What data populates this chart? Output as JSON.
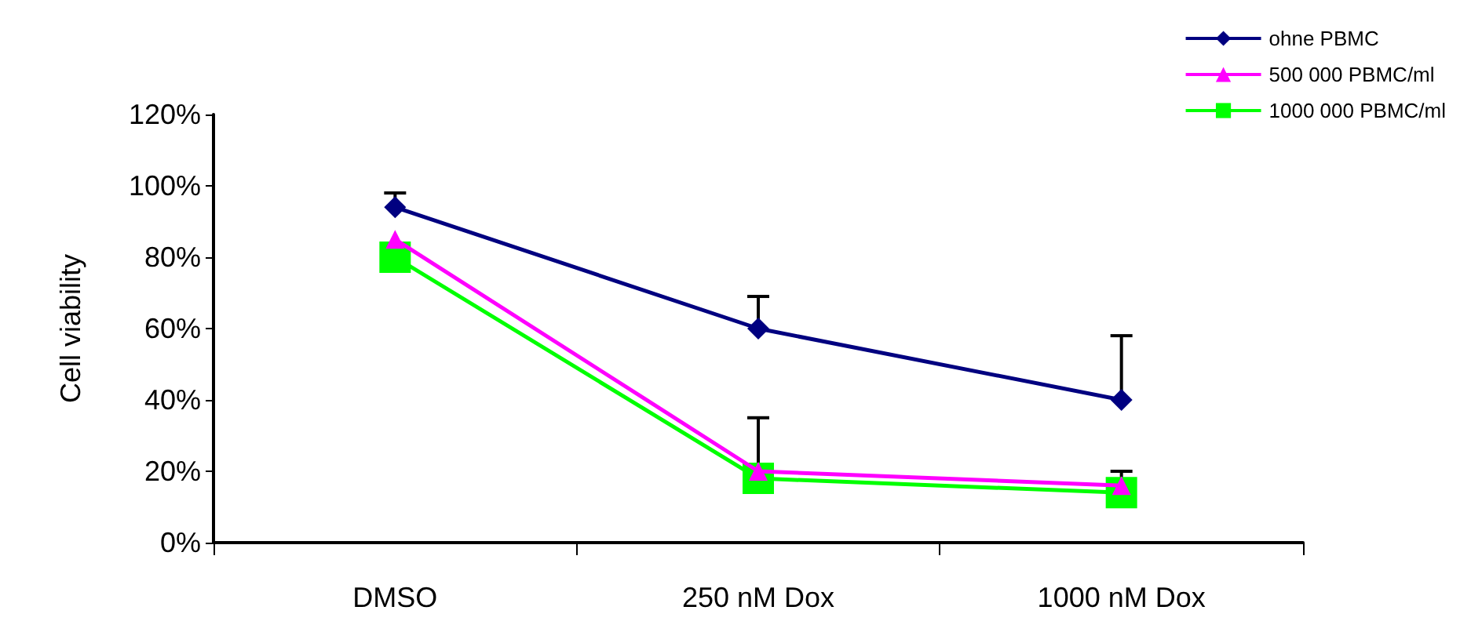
{
  "chart_data": {
    "type": "line",
    "ylabel": "Cell viability",
    "categories": [
      "DMSO",
      "250 nM Dox",
      "1000 nM Dox"
    ],
    "series": [
      {
        "name": "ohne PBMC",
        "color": "#000080",
        "marker": "diamond",
        "values": [
          94,
          60,
          40
        ],
        "errors": [
          [
            94,
            98
          ],
          [
            60,
            69
          ],
          [
            40,
            58
          ]
        ]
      },
      {
        "name": "500 000 PBMC/ml",
        "color": "#ff00ff",
        "marker": "triangle",
        "values": [
          85,
          20,
          16
        ],
        "errors": [
          null,
          [
            20,
            35
          ],
          [
            16,
            20
          ]
        ]
      },
      {
        "name": "1000 000 PBMC/ml",
        "color": "#00ff00",
        "marker": "square",
        "values": [
          80,
          18,
          14
        ]
      }
    ],
    "ylim": [
      0,
      120
    ],
    "yticks": [
      {
        "value": 0,
        "label": "0%"
      },
      {
        "value": 20,
        "label": "20%"
      },
      {
        "value": 40,
        "label": "40%"
      },
      {
        "value": 60,
        "label": "60%"
      },
      {
        "value": 80,
        "label": "80%"
      },
      {
        "value": 100,
        "label": "100%"
      },
      {
        "value": 120,
        "label": "120%"
      }
    ],
    "grid": false,
    "legend": "top right"
  }
}
